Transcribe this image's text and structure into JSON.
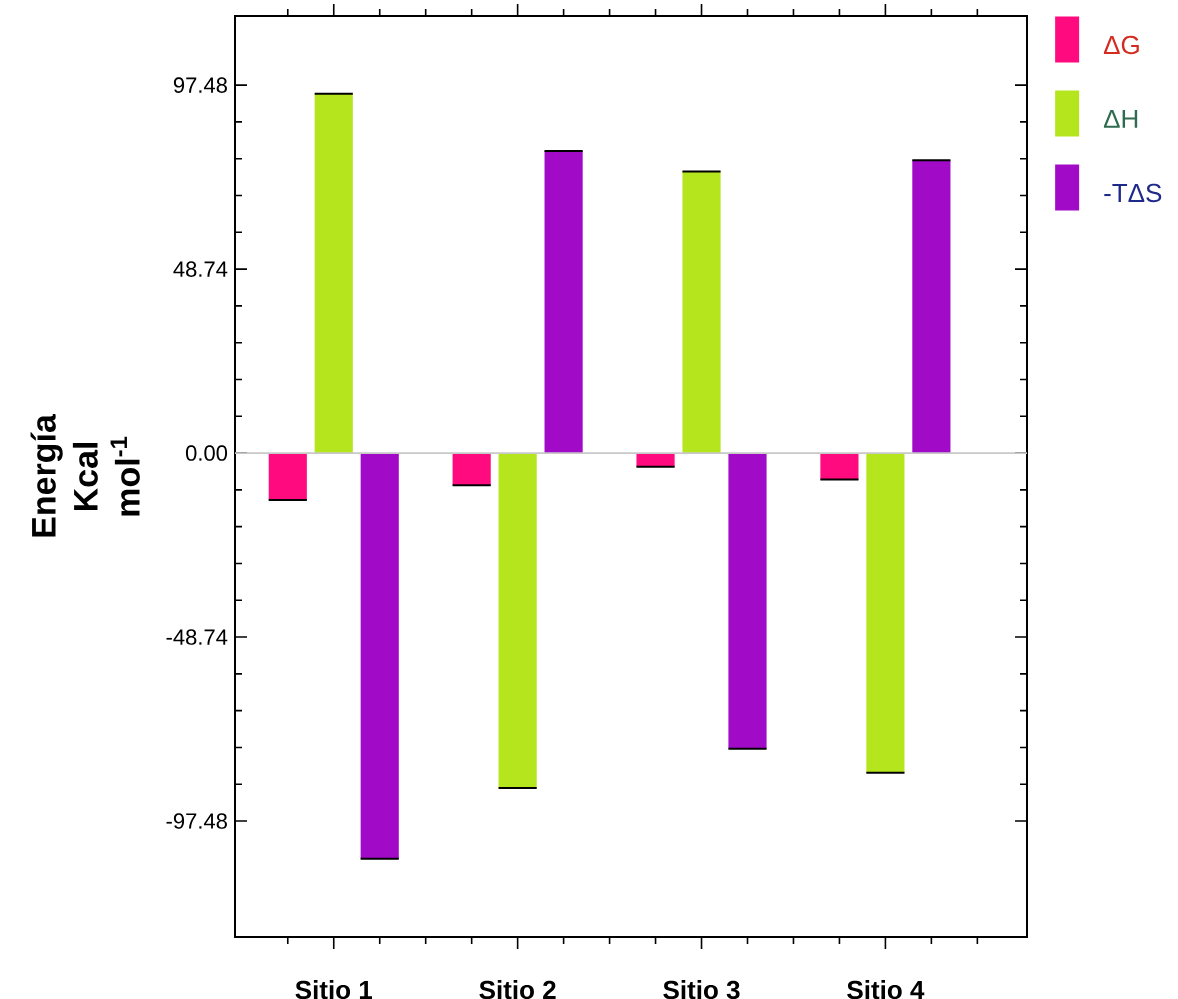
{
  "chart_data": {
    "type": "bar",
    "ylabel": "Energía Kcal mol$^{-1}$",
    "categories": [
      "Sitio 1",
      "Sitio 2",
      "Sitio 3",
      "Sitio 4"
    ],
    "series": [
      {
        "name": "ΔG",
        "color": "#ff0a7f",
        "values": [
          -12.4,
          -8.5,
          -3.6,
          -7.0
        ]
      },
      {
        "name": "ΔH",
        "color": "#b5e61d",
        "values": [
          95.2,
          -88.7,
          74.6,
          -84.7
        ]
      },
      {
        "name": "-TΔS",
        "color": "#a10ac7",
        "values": [
          -107.5,
          80.0,
          -78.3,
          77.6
        ]
      }
    ],
    "ylim": [
      -128.2,
      115.8
    ],
    "yticks": [
      -97.48,
      -48.74,
      {
        "value": 0,
        "label": "0.00"
      },
      48.74,
      97.48
    ],
    "ref_lines": [
      {
        "axis": "y",
        "value": 0,
        "color": "#c8c8c8"
      }
    ],
    "legend": "top right"
  }
}
